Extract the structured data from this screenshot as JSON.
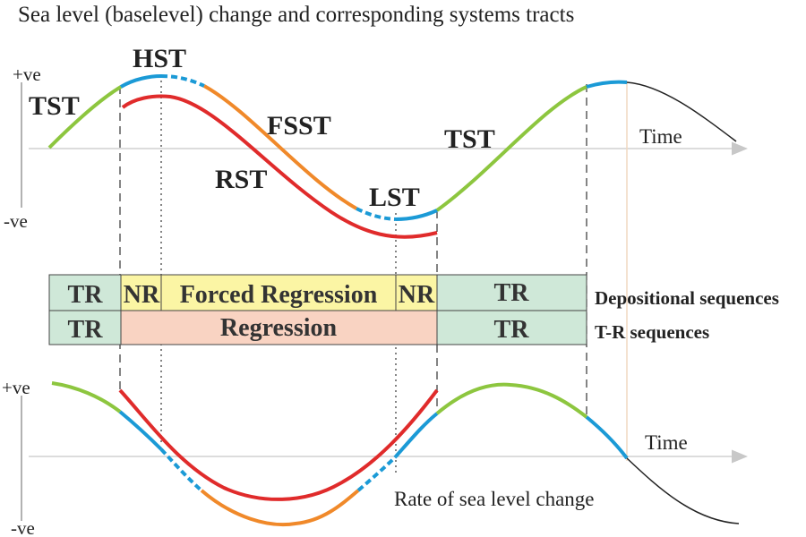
{
  "title": "Sea level (baselevel) change and corresponding systems tracts",
  "top_panel": {
    "pos_label": "+ve",
    "neg_label": "-ve",
    "time_label": "Time",
    "tracts": {
      "tst_left": "TST",
      "hst": "HST",
      "fsst": "FSST",
      "rst": "RST",
      "lst": "LST",
      "tst_right": "TST"
    }
  },
  "sequence_table": {
    "row1": {
      "tr_left": "TR",
      "nr_left": "NR",
      "middle": "Forced Regression",
      "nr_right": "NR",
      "tr_right": "TR",
      "side": "Depositional sequences"
    },
    "row2": {
      "tr_left": "TR",
      "middle": "Regression",
      "tr_right": "TR",
      "side": "T-R sequences"
    }
  },
  "bottom_panel": {
    "pos_label": "+ve",
    "neg_label": "-ve",
    "time_label": "Time",
    "caption": "Rate of sea level change"
  },
  "colors": {
    "tst": "#8dc63f",
    "hst": "#1b9ad6",
    "fsst": "#f0892a",
    "rst": "#e02b2b",
    "lst": "#1b9ad6",
    "nr_box": "#fbf5a4",
    "tr_box": "#cfe8d8",
    "regression_box": "#f9d3c2"
  }
}
